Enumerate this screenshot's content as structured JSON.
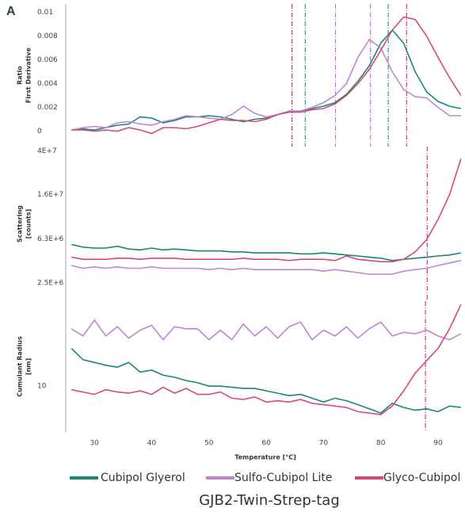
{
  "panel_label": "A",
  "title": "GJB2-Twin-Strep-tag",
  "chart_data": [
    {
      "type": "line",
      "y_label": [
        "Ratio",
        "First Derivative"
      ],
      "x": [
        26,
        28,
        30,
        32,
        34,
        36,
        38,
        40,
        42,
        44,
        46,
        48,
        50,
        52,
        54,
        56,
        58,
        60,
        62,
        64,
        66,
        68,
        70,
        72,
        74,
        76,
        78,
        80,
        82,
        84,
        86,
        88,
        90,
        92,
        94
      ],
      "xlim": [
        25,
        94.7
      ],
      "ylim": [
        -0.0013,
        0.0107
      ],
      "yticks": [
        0,
        0.002,
        0.004,
        0.006,
        0.008,
        0.01
      ],
      "series": [
        {
          "name": "Cubipol Glyerol",
          "color": "#17877a",
          "values": [
            0.0001,
            0.0002,
            0.0001,
            0.0003,
            0.0005,
            0.0006,
            0.0012,
            0.0011,
            0.0007,
            0.0009,
            0.0012,
            0.0012,
            0.0013,
            0.0012,
            0.001,
            0.0008,
            0.001,
            0.0011,
            0.0014,
            0.0016,
            0.0017,
            0.0019,
            0.0021,
            0.0024,
            0.0031,
            0.0042,
            0.0055,
            0.0074,
            0.0085,
            0.0074,
            0.005,
            0.0033,
            0.0025,
            0.0021,
            0.0019
          ]
        },
        {
          "name": "Sulfo-Cubipol Lite",
          "color": "#c084d6",
          "values": [
            0.0001,
            0.0003,
            0.0004,
            0.0003,
            0.0007,
            0.0008,
            0.0006,
            0.0005,
            0.0008,
            0.001,
            0.0013,
            0.0012,
            0.0011,
            0.001,
            0.0014,
            0.0021,
            0.0015,
            0.0012,
            0.0014,
            0.0017,
            0.0017,
            0.002,
            0.0024,
            0.003,
            0.004,
            0.0062,
            0.0077,
            0.007,
            0.005,
            0.0035,
            0.0029,
            0.0028,
            0.002,
            0.0013,
            0.0013
          ]
        },
        {
          "name": "Glyco-Cubipol",
          "color": "#d6487a",
          "values": [
            0.0001,
            0.0001,
            0,
            0.0001,
            0,
            0.0003,
            0.0001,
            -0.0002,
            0.0003,
            0.0003,
            0.0002,
            0.0004,
            0.0007,
            0.001,
            0.0009,
            0.0009,
            0.0008,
            0.001,
            0.0014,
            0.0016,
            0.0016,
            0.0018,
            0.0019,
            0.0023,
            0.003,
            0.004,
            0.0052,
            0.0068,
            0.0085,
            0.0096,
            0.0094,
            0.008,
            0.0062,
            0.0045,
            0.003
          ]
        }
      ],
      "vlines": [
        {
          "x": 64.5,
          "color": "#c2185b"
        },
        {
          "x": 66.8,
          "color": "#17877a"
        },
        {
          "x": 72.1,
          "color": "#b05cc8"
        },
        {
          "x": 78.2,
          "color": "#b05cc8"
        },
        {
          "x": 81.3,
          "color": "#17877a"
        },
        {
          "x": 84.5,
          "color": "#c2185b"
        }
      ]
    },
    {
      "type": "line",
      "y_label": [
        "Scattering",
        "[counts]"
      ],
      "log_y": true,
      "x": [
        26,
        28,
        30,
        32,
        34,
        36,
        38,
        40,
        42,
        44,
        46,
        48,
        50,
        52,
        54,
        56,
        58,
        60,
        62,
        64,
        66,
        68,
        70,
        72,
        74,
        76,
        78,
        80,
        82,
        84,
        86,
        88,
        90,
        92,
        94
      ],
      "xlim": [
        25,
        94.7
      ],
      "ylim": [
        1700000,
        44000000
      ],
      "yticks": [
        {
          "value": 2500000,
          "label": "2.5E+6"
        },
        {
          "value": 6300000,
          "label": "6.3E+6"
        },
        {
          "value": 16000000,
          "label": "1.6E+7"
        },
        {
          "value": 40000000,
          "label": "4E+7"
        }
      ],
      "series": [
        {
          "color": "#17877a",
          "values": [
            5600000,
            5300000,
            5200000,
            5200000,
            5400000,
            5100000,
            5000000,
            5200000,
            5000000,
            5100000,
            5000000,
            4900000,
            4900000,
            4900000,
            4800000,
            4800000,
            4700000,
            4700000,
            4700000,
            4700000,
            4600000,
            4600000,
            4700000,
            4600000,
            4500000,
            4400000,
            4300000,
            4200000,
            4000000,
            4100000,
            4200000,
            4300000,
            4400000,
            4500000,
            4700000
          ]
        },
        {
          "color": "#c084d6",
          "values": [
            3600000,
            3400000,
            3500000,
            3400000,
            3500000,
            3400000,
            3400000,
            3500000,
            3400000,
            3400000,
            3400000,
            3400000,
            3300000,
            3400000,
            3300000,
            3400000,
            3300000,
            3300000,
            3300000,
            3300000,
            3300000,
            3300000,
            3200000,
            3300000,
            3200000,
            3100000,
            3000000,
            3000000,
            3000000,
            3200000,
            3300000,
            3400000,
            3600000,
            3800000,
            4000000
          ]
        },
        {
          "color": "#d6487a",
          "values": [
            4300000,
            4100000,
            4100000,
            4100000,
            4200000,
            4200000,
            4100000,
            4200000,
            4200000,
            4200000,
            4100000,
            4100000,
            4100000,
            4100000,
            4100000,
            4200000,
            4100000,
            4100000,
            4100000,
            4000000,
            4100000,
            4100000,
            4100000,
            4000000,
            4400000,
            4100000,
            4000000,
            3900000,
            3900000,
            4100000,
            4800000,
            6200000,
            9500000,
            16000000,
            34000000
          ]
        }
      ],
      "vlines": [
        {
          "x": 88.1,
          "color": "#c2185b"
        }
      ]
    },
    {
      "type": "line",
      "y_label": [
        "Cumulant Radius",
        "[nm]"
      ],
      "log_y": true,
      "x_label": "Temperature [°C]",
      "x": [
        26,
        28,
        30,
        32,
        34,
        36,
        38,
        40,
        42,
        44,
        46,
        48,
        50,
        52,
        54,
        56,
        58,
        60,
        62,
        64,
        66,
        68,
        70,
        72,
        74,
        76,
        78,
        80,
        82,
        84,
        86,
        88,
        90,
        92,
        94
      ],
      "xlim": [
        25,
        94.7
      ],
      "ylim": [
        6.7,
        21
      ],
      "yticks": [
        10
      ],
      "xticks": [
        30,
        40,
        50,
        60,
        70,
        80,
        90
      ],
      "series": [
        {
          "color": "#17877a",
          "values": [
            13.9,
            12.6,
            12.3,
            12,
            11.8,
            12.3,
            11.3,
            11.5,
            11,
            10.8,
            10.5,
            10.3,
            10,
            10,
            9.9,
            9.8,
            9.8,
            9.6,
            9.4,
            9.2,
            9.3,
            9,
            8.7,
            9,
            8.8,
            8.5,
            8.2,
            7.9,
            8.6,
            8.3,
            8.1,
            8.2,
            8,
            8.4,
            8.3
          ]
        },
        {
          "color": "#c084d6",
          "values": [
            16.5,
            15.5,
            17.8,
            15.5,
            16.8,
            15.2,
            16.3,
            17,
            15,
            16.8,
            16.5,
            16.5,
            15,
            16.3,
            15,
            17.2,
            15.5,
            16.8,
            15.2,
            16.8,
            17.5,
            15,
            16.3,
            15.5,
            16.8,
            15.2,
            16.5,
            17.5,
            15.5,
            16,
            15.8,
            16.3,
            15.5,
            15,
            15.8
          ]
        },
        {
          "color": "#d6487a",
          "values": [
            9.7,
            9.5,
            9.3,
            9.7,
            9.5,
            9.4,
            9.6,
            9.3,
            9.9,
            9.4,
            9.8,
            9.3,
            9.3,
            9.5,
            9,
            8.9,
            9.1,
            8.7,
            8.8,
            8.7,
            8.9,
            8.6,
            8.5,
            8.4,
            8.3,
            8,
            7.9,
            7.8,
            8.4,
            9.6,
            11.2,
            12.5,
            13.9,
            16.5,
            20.4
          ]
        }
      ],
      "vlines": [
        {
          "x": 87.8,
          "color": "#c2185b"
        }
      ]
    }
  ]
}
